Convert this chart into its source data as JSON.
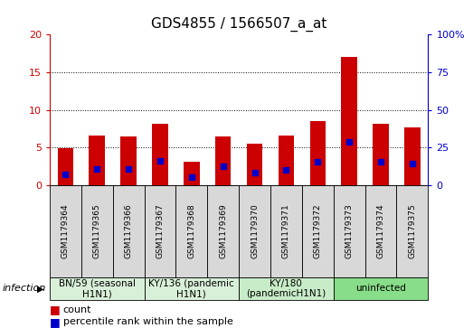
{
  "title": "GDS4855 / 1566507_a_at",
  "samples": [
    "GSM1179364",
    "GSM1179365",
    "GSM1179366",
    "GSM1179367",
    "GSM1179368",
    "GSM1179369",
    "GSM1179370",
    "GSM1179371",
    "GSM1179372",
    "GSM1179373",
    "GSM1179374",
    "GSM1179375"
  ],
  "count_values": [
    4.9,
    6.6,
    6.5,
    8.1,
    3.1,
    6.5,
    5.5,
    6.6,
    8.5,
    17.0,
    8.1,
    7.7
  ],
  "percentile_values": [
    1.5,
    2.2,
    2.2,
    3.2,
    1.1,
    2.5,
    1.7,
    2.1,
    3.1,
    5.8,
    3.1,
    2.9
  ],
  "ylim_left": [
    0,
    20
  ],
  "ylim_right": [
    0,
    100
  ],
  "yticks_left": [
    0,
    5,
    10,
    15,
    20
  ],
  "yticks_right": [
    0,
    25,
    50,
    75,
    100
  ],
  "bar_color": "#cc0000",
  "percentile_color": "#0000cc",
  "bar_width": 0.5,
  "groups": [
    {
      "label": "BN/59 (seasonal\nH1N1)",
      "start": 0,
      "end": 2,
      "color": "#d8f0d8"
    },
    {
      "label": "KY/136 (pandemic\nH1N1)",
      "start": 3,
      "end": 5,
      "color": "#d8f0d8"
    },
    {
      "label": "KY/180\n(pandemicH1N1)",
      "start": 6,
      "end": 8,
      "color": "#c8ecc8"
    },
    {
      "label": "uninfected",
      "start": 9,
      "end": 11,
      "color": "#88dd88"
    }
  ],
  "sample_box_color": "#d8d8d8",
  "legend_count_label": "count",
  "legend_percentile_label": "percentile rank within the sample",
  "infection_label": "infection",
  "left_axis_color": "#cc0000",
  "right_axis_color": "#0000cc",
  "background_color": "#ffffff",
  "plot_bg_color": "#ffffff",
  "grid_color": "#000000",
  "title_fontsize": 11,
  "tick_fontsize": 7,
  "group_fontsize": 8,
  "legend_fontsize": 8
}
